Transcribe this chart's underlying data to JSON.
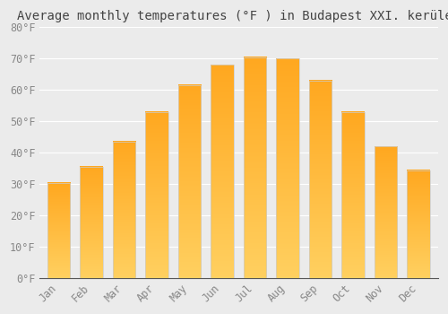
{
  "title": "Average monthly temperatures (°F ) in Budapest XXI. kerület",
  "months": [
    "Jan",
    "Feb",
    "Mar",
    "Apr",
    "May",
    "Jun",
    "Jul",
    "Aug",
    "Sep",
    "Oct",
    "Nov",
    "Dec"
  ],
  "values": [
    30.5,
    35.5,
    43.5,
    53,
    61.5,
    68,
    70.5,
    70,
    63,
    53,
    42,
    34.5
  ],
  "bar_color": "#FFA820",
  "bar_bottom_color": "#FFD060",
  "ylim": [
    0,
    80
  ],
  "yticks": [
    0,
    10,
    20,
    30,
    40,
    50,
    60,
    70,
    80
  ],
  "background_color": "#ebebeb",
  "grid_color": "#ffffff",
  "title_fontsize": 10,
  "tick_fontsize": 8.5,
  "bar_edge_color": "#cccccc",
  "bar_width": 0.7
}
